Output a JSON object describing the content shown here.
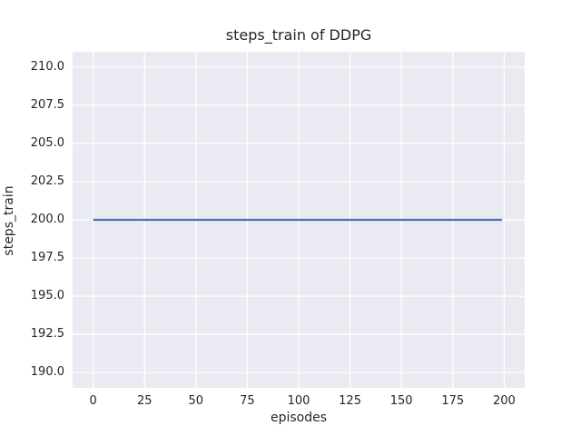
{
  "chart_data": {
    "type": "line",
    "title": "steps_train of DDPG",
    "xlabel": "episodes",
    "ylabel": "steps_train",
    "xlim": [
      -10,
      210
    ],
    "ylim": [
      189,
      211
    ],
    "x_ticks": [
      0,
      25,
      50,
      75,
      100,
      125,
      150,
      175,
      200
    ],
    "x_tick_labels": [
      "0",
      "25",
      "50",
      "75",
      "100",
      "125",
      "150",
      "175",
      "200"
    ],
    "y_ticks": [
      190.0,
      192.5,
      195.0,
      197.5,
      200.0,
      202.5,
      205.0,
      207.5,
      210.0
    ],
    "y_tick_labels": [
      "190.0",
      "192.5",
      "195.0",
      "197.5",
      "200.0",
      "202.5",
      "205.0",
      "207.5",
      "210.0"
    ],
    "grid": true,
    "legend": "none",
    "plot_background_color": "#eaeaf2",
    "grid_color": "#ffffff",
    "text_color": "#262626",
    "series": [
      {
        "name": "steps_train",
        "color": "#4c72b0",
        "x": [
          0,
          199
        ],
        "y": [
          200,
          200
        ]
      }
    ]
  }
}
